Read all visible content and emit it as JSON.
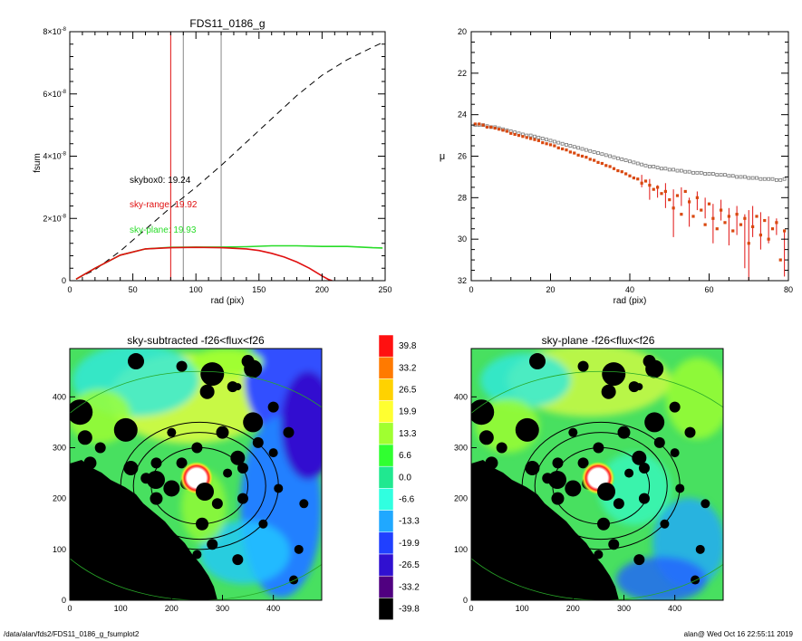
{
  "footer": {
    "path": "/data/alan/fds2/FDS11_0186_g_fsumplot2",
    "stamp": "alan@  Wed Oct 16 22:55:11 2019"
  },
  "colors": {
    "cumulative": "#000000",
    "sky_range": "#e01010",
    "sky_plane": "#28dc28",
    "skybox": "#000000",
    "mu_primary": "#d9480f",
    "mu_secondary": "#777777"
  },
  "chart_data": [
    {
      "type": "line",
      "title": "FDS11_0186_g",
      "xlabel": "rad (pix)",
      "ylabel": "fsum",
      "xlim": [
        0,
        250
      ],
      "ylim": [
        0,
        8e-08
      ],
      "xticks": [
        "0",
        "50",
        "100",
        "150",
        "200",
        "250"
      ],
      "yticks": [
        {
          "mant": "0",
          "exp": ""
        },
        {
          "mant": "2×10",
          "exp": "-8"
        },
        {
          "mant": "4×10",
          "exp": "-8"
        },
        {
          "mant": "6×10",
          "exp": "-8"
        },
        {
          "mant": "8×10",
          "exp": "-8"
        }
      ],
      "vlines": [
        {
          "x": 80,
          "color": "red"
        },
        {
          "x": 90,
          "color": "gray"
        },
        {
          "x": 120,
          "color": "gray"
        }
      ],
      "annotations": [
        {
          "text": "skybox0: 19.24",
          "x": 45,
          "y": 3.2e-08,
          "color": "black"
        },
        {
          "text": "sky-range: 19.92",
          "x": 45,
          "y": 2.4e-08,
          "color": "red"
        },
        {
          "text": "sky-plane: 19.93",
          "x": 45,
          "y": 1.6e-08,
          "color": "green"
        }
      ],
      "series": [
        {
          "style": "dashed",
          "color": "black",
          "x": [
            5,
            20,
            40,
            60,
            80,
            100,
            120,
            140,
            160,
            180,
            200,
            220,
            240,
            248
          ],
          "y": [
            5e-10,
            3.5e-09,
            9.5e-09,
            1.65e-08,
            2.35e-08,
            3e-08,
            3.7e-08,
            4.45e-08,
            5.2e-08,
            5.95e-08,
            6.6e-08,
            7.1e-08,
            7.5e-08,
            7.65e-08
          ]
        },
        {
          "style": "solid",
          "color": "green",
          "x": [
            5,
            20,
            40,
            60,
            80,
            100,
            120,
            140,
            160,
            180,
            200,
            220,
            240,
            248
          ],
          "y": [
            5e-10,
            4e-09,
            8.2e-09,
            1.02e-08,
            1.07e-08,
            1.08e-08,
            1.08e-08,
            1.09e-08,
            1.12e-08,
            1.12e-08,
            1.1e-08,
            1.1e-08,
            1.06e-08,
            1.05e-08
          ]
        },
        {
          "style": "solid",
          "color": "red",
          "x": [
            5,
            20,
            40,
            60,
            80,
            100,
            120,
            140,
            150,
            160,
            170,
            180,
            190,
            200,
            205,
            208
          ],
          "y": [
            5e-10,
            4e-09,
            8.2e-09,
            1.02e-08,
            1.06e-08,
            1.07e-08,
            1.06e-08,
            1.02e-08,
            9.7e-09,
            8.8e-09,
            7.6e-09,
            6e-09,
            4e-09,
            1.5e-09,
            4e-10,
            0.0
          ]
        }
      ]
    },
    {
      "type": "scatter",
      "title": "",
      "xlabel": "rad (pix)",
      "ylabel": "μ",
      "xlim": [
        0,
        80
      ],
      "ylim": [
        32,
        20
      ],
      "xticks": [
        "0",
        "20",
        "40",
        "60",
        "80"
      ],
      "yticks": [
        "20",
        "22",
        "24",
        "26",
        "28",
        "30",
        "32"
      ],
      "series": [
        {
          "marker": "square",
          "color": "gray",
          "x": [
            1,
            2,
            3,
            4,
            5,
            6,
            7,
            8,
            9,
            10,
            11,
            12,
            13,
            14,
            15,
            16,
            17,
            18,
            19,
            20,
            21,
            22,
            23,
            24,
            25,
            26,
            27,
            28,
            29,
            30,
            31,
            32,
            33,
            34,
            35,
            36,
            37,
            38,
            39,
            40,
            41,
            42,
            43,
            44,
            45,
            46,
            47,
            48,
            49,
            50,
            51,
            52,
            53,
            54,
            55,
            56,
            57,
            58,
            59,
            60,
            61,
            62,
            63,
            64,
            65,
            66,
            67,
            68,
            69,
            70,
            71,
            72,
            73,
            74,
            75,
            76,
            77,
            78,
            79
          ],
          "y": [
            24.5,
            24.5,
            24.5,
            24.55,
            24.6,
            24.6,
            24.65,
            24.7,
            24.75,
            24.8,
            24.85,
            24.9,
            24.95,
            25.0,
            25.0,
            25.05,
            25.1,
            25.15,
            25.2,
            25.25,
            25.3,
            25.35,
            25.4,
            25.45,
            25.5,
            25.55,
            25.6,
            25.65,
            25.7,
            25.75,
            25.8,
            25.85,
            25.9,
            25.95,
            26.0,
            26.05,
            26.1,
            26.15,
            26.2,
            26.25,
            26.3,
            26.35,
            26.4,
            26.45,
            26.5,
            26.5,
            26.55,
            26.6,
            26.6,
            26.65,
            26.65,
            26.7,
            26.7,
            26.75,
            26.75,
            26.8,
            26.8,
            26.8,
            26.85,
            26.85,
            26.85,
            26.9,
            26.9,
            26.9,
            26.95,
            26.95,
            27.0,
            27.0,
            27.0,
            27.05,
            27.05,
            27.05,
            27.1,
            27.1,
            27.1,
            27.1,
            27.15,
            27.15,
            27.1
          ]
        },
        {
          "marker": "point",
          "color": "orange",
          "x": [
            1,
            2,
            3,
            4,
            5,
            6,
            7,
            8,
            9,
            10,
            11,
            12,
            13,
            14,
            15,
            16,
            17,
            18,
            19,
            20,
            21,
            22,
            23,
            24,
            25,
            26,
            27,
            28,
            29,
            30,
            31,
            32,
            33,
            34,
            35,
            36,
            37,
            38,
            39,
            40,
            41,
            42,
            43,
            44,
            45,
            46,
            47,
            48,
            49,
            50,
            51,
            52,
            53,
            54,
            55,
            56,
            57,
            58,
            59,
            60,
            61,
            62,
            63,
            64,
            65,
            66,
            67,
            68,
            69,
            70,
            71,
            72,
            73,
            74,
            75,
            76,
            77,
            78,
            79
          ],
          "y": [
            24.45,
            24.45,
            24.5,
            24.6,
            24.6,
            24.65,
            24.7,
            24.75,
            24.8,
            24.9,
            24.95,
            25.0,
            25.05,
            25.1,
            25.15,
            25.2,
            25.25,
            25.35,
            25.4,
            25.45,
            25.5,
            25.6,
            25.65,
            25.7,
            25.8,
            25.85,
            25.95,
            26.0,
            26.05,
            26.15,
            26.2,
            26.3,
            26.35,
            26.45,
            26.5,
            26.6,
            26.7,
            26.75,
            26.85,
            26.95,
            27.05,
            27.1,
            27.3,
            27.2,
            27.4,
            27.6,
            27.5,
            27.8,
            27.7,
            28.1,
            28.5,
            27.9,
            28.8,
            27.7,
            28.2,
            28.9,
            28.0,
            28.6,
            29.3,
            28.3,
            29.0,
            29.5,
            28.6,
            29.2,
            28.9,
            29.6,
            28.8,
            29.3,
            29.0,
            30.2,
            29.4,
            28.9,
            29.8,
            29.1,
            30.0,
            29.5,
            29.2,
            31.0,
            29.6
          ]
        },
        {
          "marker": "errorbar",
          "color": "red",
          "x": [
            43,
            45,
            47,
            49,
            51,
            53,
            55,
            57,
            59,
            61,
            63,
            65,
            67,
            69,
            70,
            71,
            73,
            75,
            77,
            79
          ],
          "y_low": [
            26.9,
            27.1,
            27.4,
            27.3,
            27.6,
            27.5,
            28.0,
            27.7,
            28.0,
            28.3,
            28.1,
            28.5,
            28.4,
            28.8,
            28.6,
            28.4,
            28.7,
            28.9,
            29.0,
            29.6
          ],
          "y_high": [
            27.5,
            28.1,
            28.0,
            28.5,
            29.9,
            28.4,
            29.4,
            28.6,
            29.0,
            30.2,
            29.1,
            30.3,
            29.8,
            31.4,
            32.2,
            29.9,
            30.5,
            30.2,
            29.8,
            31.8
          ]
        }
      ]
    },
    {
      "type": "heatmap",
      "title": "sky-subtracted -f26<flux<f26",
      "xlabel": "",
      "ylabel": "",
      "xlim": [
        0,
        495
      ],
      "ylim": [
        0,
        495
      ],
      "xticks": [
        "0",
        "100",
        "200",
        "300",
        "400"
      ],
      "yticks": [
        "0",
        "100",
        "200",
        "300",
        "400"
      ],
      "center": [
        255,
        225
      ],
      "ellipse_radii": [
        {
          "rx": 95,
          "ry": 75,
          "color": "black"
        },
        {
          "rx": 130,
          "ry": 105,
          "color": "black"
        },
        {
          "rx": 155,
          "ry": 125,
          "color": "black"
        },
        {
          "rx": 330,
          "ry": 225,
          "color": "green"
        }
      ]
    },
    {
      "type": "heatmap",
      "title": "sky-plane -f26<flux<f26",
      "xlabel": "",
      "ylabel": "",
      "xlim": [
        0,
        495
      ],
      "ylim": [
        0,
        495
      ],
      "xticks": [
        "0",
        "100",
        "200",
        "300",
        "400"
      ],
      "yticks": [
        "0",
        "100",
        "200",
        "300",
        "400"
      ],
      "center": [
        255,
        225
      ],
      "ellipse_radii": [
        {
          "rx": 95,
          "ry": 75,
          "color": "black"
        },
        {
          "rx": 130,
          "ry": 105,
          "color": "black"
        },
        {
          "rx": 155,
          "ry": 125,
          "color": "black"
        },
        {
          "rx": 330,
          "ry": 225,
          "color": "green"
        }
      ]
    }
  ],
  "colorbar": {
    "levels": [
      "39.8",
      "33.2",
      "26.5",
      "19.9",
      "13.3",
      "6.6",
      "0.0",
      "-6.6",
      "-13.3",
      "-19.9",
      "-26.5",
      "-33.2",
      "-39.8"
    ],
    "colors": [
      "#ff1010",
      "#ff7a00",
      "#ffd200",
      "#ffff30",
      "#a0ff30",
      "#30ff30",
      "#20e890",
      "#30ffe0",
      "#20a8ff",
      "#2040ff",
      "#3010d0",
      "#500080",
      "#000000"
    ]
  }
}
